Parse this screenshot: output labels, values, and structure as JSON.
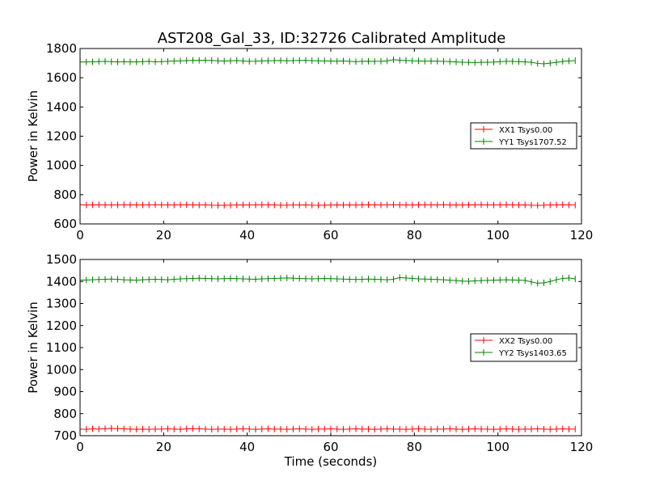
{
  "chart_data": [
    {
      "type": "line",
      "title": "AST208_Gal_33, ID:32726 Calibrated Amplitude",
      "xlabel": "",
      "ylabel": "Power in Kelvin",
      "xlim": [
        0,
        120
      ],
      "ylim": [
        600,
        1800
      ],
      "xticks": [
        "0",
        "20",
        "40",
        "60",
        "80",
        "100",
        "120"
      ],
      "yticks": [
        "600",
        "800",
        "1000",
        "1200",
        "1400",
        "1600",
        "1800"
      ],
      "grid": false,
      "legend_placement": "center-right",
      "x_start": 0,
      "x_step": 1.5,
      "series": [
        {
          "name": "XX1 Tsys0.00",
          "color": "#ff0000",
          "values": [
            731,
            729,
            730,
            731,
            730,
            729,
            730,
            731,
            730,
            730,
            729,
            730,
            731,
            730,
            730,
            729,
            730,
            731,
            730,
            729,
            730,
            728,
            727,
            727,
            728,
            729,
            730,
            729,
            730,
            731,
            730,
            729,
            728,
            728,
            729,
            729,
            730,
            728,
            727,
            728,
            729,
            730,
            729,
            730,
            729,
            730,
            731,
            730,
            729,
            730,
            731,
            730,
            730,
            729,
            730,
            731,
            730,
            730,
            731,
            729,
            730,
            729,
            730,
            730,
            731,
            730,
            729,
            730,
            731,
            730,
            729,
            730,
            728,
            727,
            728,
            729,
            730,
            731,
            730,
            729
          ]
        },
        {
          "name": "YY1 Tsys1707.52",
          "color": "#008000",
          "values": [
            1708,
            1708,
            1709,
            1711,
            1712,
            1710,
            1708,
            1710,
            1709,
            1708,
            1710,
            1712,
            1709,
            1710,
            1712,
            1714,
            1716,
            1718,
            1719,
            1719,
            1720,
            1718,
            1716,
            1714,
            1716,
            1718,
            1715,
            1712,
            1713,
            1715,
            1716,
            1717,
            1718,
            1716,
            1717,
            1718,
            1719,
            1717,
            1716,
            1715,
            1714,
            1713,
            1715,
            1712,
            1710,
            1712,
            1713,
            1712,
            1713,
            1715,
            1724,
            1720,
            1718,
            1716,
            1715,
            1713,
            1714,
            1713,
            1712,
            1710,
            1708,
            1706,
            1705,
            1704,
            1706,
            1706,
            1707,
            1710,
            1712,
            1712,
            1710,
            1709,
            1705,
            1698,
            1695,
            1700,
            1705,
            1712,
            1715,
            1717
          ]
        }
      ]
    },
    {
      "type": "line",
      "title": "",
      "xlabel": "Time (seconds)",
      "ylabel": "Power in Kelvin",
      "xlim": [
        0,
        120
      ],
      "ylim": [
        700,
        1500
      ],
      "xticks": [
        "0",
        "20",
        "40",
        "60",
        "80",
        "100",
        "120"
      ],
      "yticks": [
        "700",
        "800",
        "900",
        "1000",
        "1100",
        "1200",
        "1300",
        "1400",
        "1500"
      ],
      "grid": false,
      "legend_placement": "center-right",
      "x_start": 0,
      "x_step": 1.5,
      "series": [
        {
          "name": "XX2 Tsys0.00",
          "color": "#ff0000",
          "values": [
            730,
            729,
            731,
            730,
            732,
            733,
            732,
            731,
            730,
            729,
            730,
            729,
            730,
            730,
            731,
            730,
            729,
            731,
            732,
            731,
            730,
            729,
            730,
            730,
            729,
            730,
            731,
            730,
            729,
            730,
            731,
            730,
            730,
            729,
            730,
            731,
            730,
            729,
            730,
            730,
            731,
            730,
            729,
            730,
            731,
            730,
            730,
            729,
            730,
            731,
            730,
            730,
            729,
            730,
            731,
            730,
            729,
            730,
            730,
            731,
            730,
            729,
            730,
            731,
            730,
            730,
            729,
            730,
            731,
            730,
            729,
            730,
            730,
            731,
            730,
            729,
            730,
            731,
            730,
            730
          ]
        },
        {
          "name": "YY2 Tsys1403.65",
          "color": "#008000",
          "values": [
            1406,
            1407,
            1408,
            1409,
            1410,
            1411,
            1410,
            1408,
            1407,
            1406,
            1408,
            1409,
            1410,
            1409,
            1408,
            1410,
            1412,
            1413,
            1414,
            1415,
            1414,
            1413,
            1412,
            1413,
            1414,
            1413,
            1412,
            1411,
            1410,
            1412,
            1413,
            1414,
            1415,
            1416,
            1415,
            1414,
            1413,
            1412,
            1413,
            1414,
            1413,
            1412,
            1411,
            1410,
            1409,
            1410,
            1411,
            1410,
            1409,
            1408,
            1410,
            1418,
            1416,
            1414,
            1412,
            1411,
            1410,
            1409,
            1408,
            1406,
            1404,
            1402,
            1401,
            1403,
            1404,
            1405,
            1406,
            1407,
            1408,
            1407,
            1406,
            1405,
            1398,
            1392,
            1394,
            1400,
            1408,
            1414,
            1416,
            1412
          ]
        }
      ]
    }
  ]
}
